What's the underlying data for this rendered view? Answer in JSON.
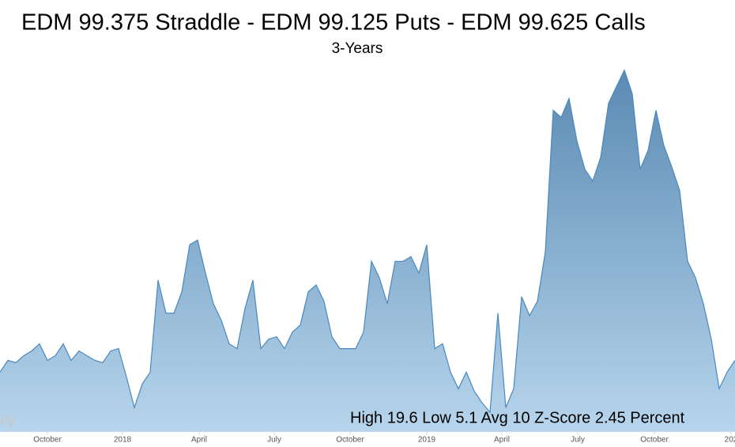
{
  "chart_data": {
    "type": "area",
    "title": "EDM 99.375 Straddle - EDM 99.125 Puts - EDM 99.625 Calls",
    "subtitle": "3-Years",
    "annotation": "High 19.6 Low 5.1 Avg 10 Z-Score 2.45 Percent",
    "watermark": "ey",
    "color": "#4a88bd",
    "xlim": [
      0,
      93
    ],
    "ylim": [
      4.3,
      21.5
    ],
    "xticks": [
      {
        "value": 6.0,
        "label": "October"
      },
      {
        "value": 15.5,
        "label": "2018"
      },
      {
        "value": 25.2,
        "label": "April"
      },
      {
        "value": 34.7,
        "label": "July"
      },
      {
        "value": 44.3,
        "label": "October"
      },
      {
        "value": 54.0,
        "label": "2019"
      },
      {
        "value": 63.5,
        "label": "April"
      },
      {
        "value": 73.1,
        "label": "July"
      },
      {
        "value": 82.8,
        "label": "October"
      },
      {
        "value": 92.5,
        "label": "202"
      }
    ],
    "values": [
      6.8,
      7.3,
      7.2,
      7.5,
      7.7,
      8.0,
      7.3,
      7.5,
      8.0,
      7.3,
      7.7,
      7.5,
      7.3,
      7.2,
      7.7,
      7.8,
      6.6,
      5.3,
      6.3,
      6.8,
      10.7,
      9.3,
      9.3,
      10.2,
      12.2,
      12.4,
      11.0,
      9.7,
      9.0,
      8.0,
      7.8,
      9.5,
      10.7,
      7.8,
      8.2,
      8.3,
      7.8,
      8.5,
      8.8,
      10.2,
      10.5,
      9.8,
      8.3,
      7.8,
      7.8,
      7.8,
      8.5,
      11.5,
      10.8,
      9.7,
      11.5,
      11.5,
      11.7,
      11.0,
      12.2,
      7.8,
      8.0,
      6.8,
      6.1,
      6.8,
      6.0,
      5.5,
      5.1,
      9.3,
      5.3,
      6.1,
      10.0,
      9.2,
      9.8,
      11.9,
      17.9,
      17.6,
      18.4,
      16.6,
      15.4,
      14.9,
      15.9,
      18.2,
      18.9,
      19.6,
      18.6,
      15.4,
      16.2,
      17.9,
      16.4,
      15.5,
      14.5,
      11.5,
      10.8,
      9.7,
      8.2,
      6.1,
      6.8,
      7.3
    ]
  }
}
